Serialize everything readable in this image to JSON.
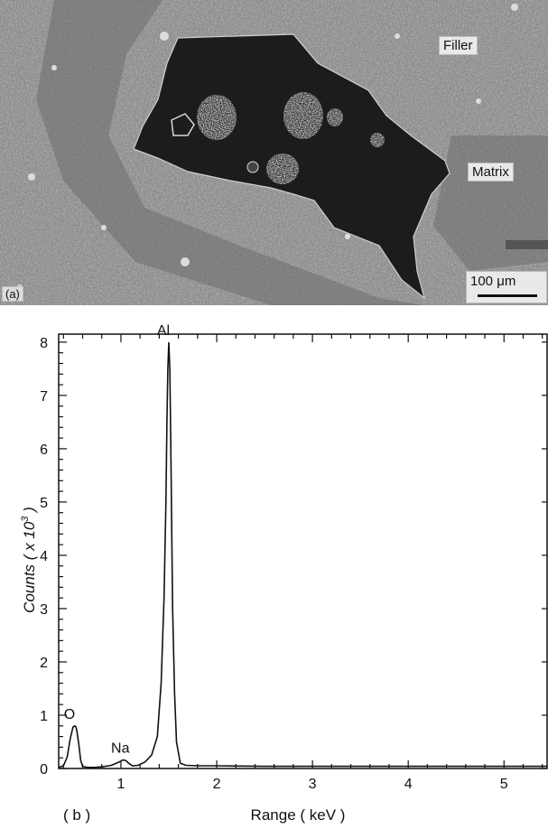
{
  "micrograph": {
    "labels": {
      "filler": "Filler",
      "matrix": "Matrix"
    },
    "panel_label": "(a)",
    "scale_bar": "100 μm"
  },
  "chart_data": {
    "type": "line",
    "panel_label": "( b )",
    "xlabel": "Range ( keV )",
    "ylabel": "Counts ( x 10",
    "ylabel_sup": "3",
    "ylabel_close": " )",
    "xlim": [
      0.35,
      5.45
    ],
    "ylim": [
      0,
      8.15
    ],
    "x_ticks": [
      1,
      2,
      3,
      4,
      5
    ],
    "y_ticks": [
      0,
      1,
      2,
      3,
      4,
      5,
      6,
      7,
      8
    ],
    "series": [
      {
        "x": [
          0.35,
          0.4,
          0.44,
          0.47,
          0.5,
          0.52,
          0.53,
          0.54,
          0.56,
          0.58,
          0.6,
          0.65,
          0.72,
          0.8,
          0.9,
          0.98,
          1.02,
          1.05,
          1.08,
          1.12,
          1.18,
          1.25,
          1.32,
          1.38,
          1.42,
          1.45,
          1.47,
          1.48,
          1.49,
          1.5,
          1.51,
          1.52,
          1.53,
          1.54,
          1.56,
          1.58,
          1.62,
          1.68,
          1.8,
          2.0,
          2.5,
          3.0,
          3.5,
          4.0,
          4.5,
          5.0,
          5.45
        ],
        "y": [
          0.02,
          0.05,
          0.22,
          0.55,
          0.78,
          0.8,
          0.78,
          0.7,
          0.45,
          0.15,
          0.04,
          0.02,
          0.02,
          0.03,
          0.06,
          0.12,
          0.16,
          0.15,
          0.1,
          0.05,
          0.06,
          0.12,
          0.25,
          0.6,
          1.6,
          3.2,
          5.0,
          6.5,
          7.5,
          8.0,
          7.5,
          6.2,
          4.5,
          3.0,
          1.4,
          0.5,
          0.1,
          0.06,
          0.05,
          0.05,
          0.04,
          0.04,
          0.04,
          0.04,
          0.04,
          0.04,
          0.04
        ]
      }
    ],
    "annotations": [
      {
        "text": "O",
        "x": 0.52,
        "y": 0.8
      },
      {
        "text": "Na",
        "x": 1.05,
        "y": 0.16
      },
      {
        "text": "Al",
        "x": 1.5,
        "y": 8.0
      }
    ]
  }
}
